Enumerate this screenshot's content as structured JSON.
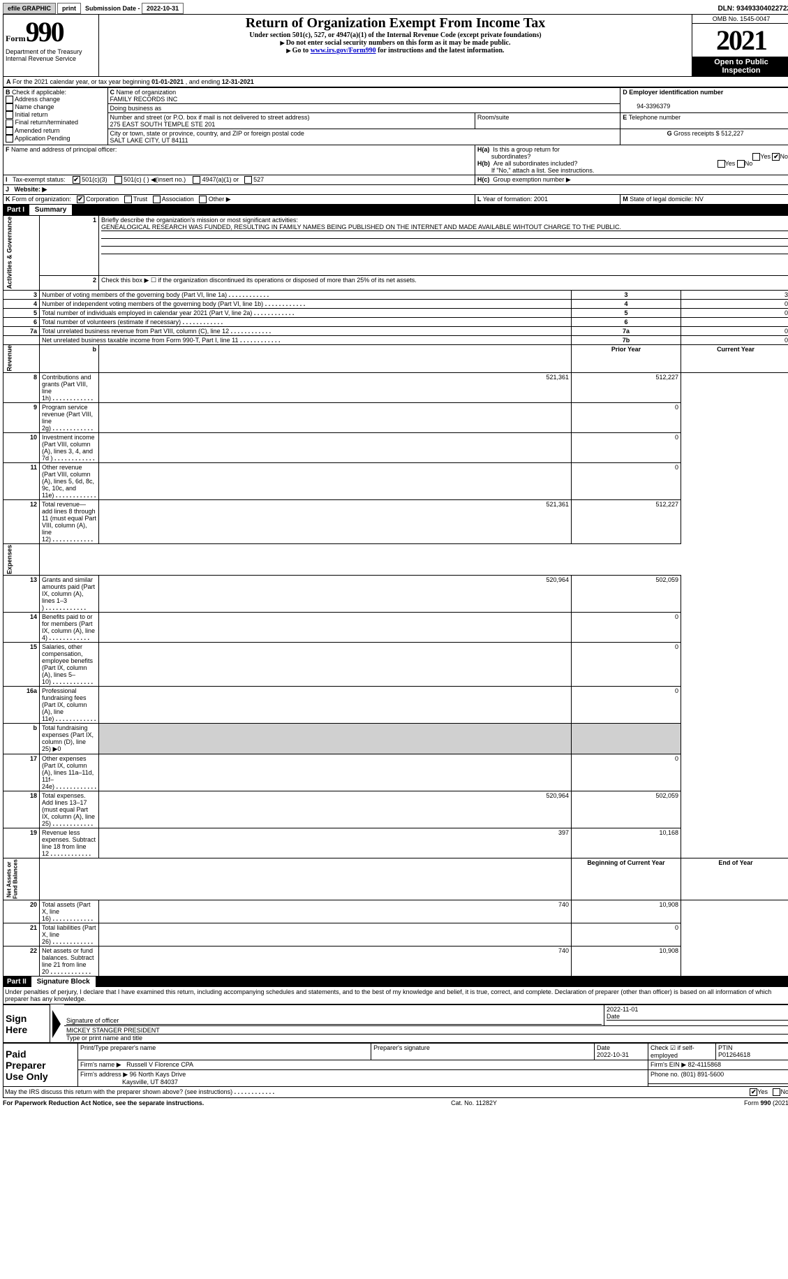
{
  "topbar": {
    "efile": "efile GRAPHIC",
    "print": "print",
    "sub_label": "Submission Date -",
    "sub_date": "2022-10-31",
    "dln": "DLN: 93493304022722"
  },
  "header": {
    "form_word": "Form",
    "form_num": "990",
    "dept": "Department of the Treasury\nInternal Revenue Service",
    "title": "Return of Organization Exempt From Income Tax",
    "sub1": "Under section 501(c), 527, or 4947(a)(1) of the Internal Revenue Code (except private foundations)",
    "sub2": "Do not enter social security numbers on this form as it may be made public.",
    "sub3_a": "Go to ",
    "sub3_link": "www.irs.gov/Form990",
    "sub3_b": " for instructions and the latest information.",
    "omb": "OMB No. 1545-0047",
    "year": "2021",
    "inspect": "Open to Public\nInspection"
  },
  "A": {
    "line": "For the 2021 calendar year, or tax year beginning ",
    "beg": "01-01-2021",
    "mid": "   , and ending ",
    "end": "12-31-2021"
  },
  "B": {
    "label": "Check if applicable:",
    "items": [
      "Address change",
      "Name change",
      "Initial return",
      "Final return/terminated",
      "Amended return",
      "Application Pending"
    ]
  },
  "C": {
    "name_label": "Name of organization",
    "name": "FAMILY RECORDS INC",
    "dba_label": "Doing business as",
    "addr_label": "Number and street (or P.O. box if mail is not delivered to street address)",
    "room_label": "Room/suite",
    "addr": "275 EAST SOUTH TEMPLE STE 201",
    "city_label": "City or town, state or province, country, and ZIP or foreign postal code",
    "city": "SALT LAKE CITY, UT  84111"
  },
  "D": {
    "label": "Employer identification number",
    "val": "94-3396379"
  },
  "E": {
    "label": "Telephone number",
    "val": ""
  },
  "G": {
    "label": "Gross receipts $",
    "val": "512,227"
  },
  "F": {
    "label": "Name and address of principal officer:"
  },
  "H": {
    "a": "Is this a group return for",
    "a2": "subordinates?",
    "b": "Are all subordinates included?",
    "c": "If \"No,\" attach a list. See instructions.",
    "hc": "Group exemption number ▶",
    "yes": "Yes",
    "no": "No"
  },
  "I": {
    "label": "Tax-exempt status:",
    "o1": "501(c)(3)",
    "o2": "501(c) (  ) ◀(insert no.)",
    "o3": "4947(a)(1) or",
    "o4": "527"
  },
  "J": {
    "label": "Website: ▶"
  },
  "K": {
    "label": "Form of organization:",
    "corp": "Corporation",
    "trust": "Trust",
    "assoc": "Association",
    "other": "Other ▶"
  },
  "L": {
    "label": "Year of formation:",
    "val": "2001"
  },
  "M": {
    "label": "State of legal domicile:",
    "val": "NV"
  },
  "part1": {
    "hdr": "Part I",
    "title": "Summary",
    "q1": "Briefly describe the organization's mission or most significant activities:",
    "mission": "GENEALOGICAL RESEARCH WAS FUNDED, RESULTING IN FAMILY NAMES BEING PUBLISHED ON THE INTERNET AND MADE AVAILABLE WIHTOUT CHARGE TO THE PUBLIC.",
    "q2": "Check this box ▶ ☐ if the organization discontinued its operations or disposed of more than 25% of its net assets.",
    "rows": [
      {
        "n": "3",
        "t": "Number of voting members of the governing body (Part VI, line 1a)",
        "box": "3",
        "v": "3"
      },
      {
        "n": "4",
        "t": "Number of independent voting members of the governing body (Part VI, line 1b)",
        "box": "4",
        "v": "0"
      },
      {
        "n": "5",
        "t": "Total number of individuals employed in calendar year 2021 (Part V, line 2a)",
        "box": "5",
        "v": "0"
      },
      {
        "n": "6",
        "t": "Total number of volunteers (estimate if necessary)",
        "box": "6",
        "v": ""
      },
      {
        "n": "7a",
        "t": "Total unrelated business revenue from Part VIII, column (C), line 12",
        "box": "7a",
        "v": "0"
      },
      {
        "n": "",
        "t": "Net unrelated business taxable income from Form 990-T, Part I, line 11",
        "box": "7b",
        "v": "0"
      }
    ],
    "prior": "Prior Year",
    "current": "Current Year",
    "rev": [
      {
        "n": "8",
        "t": "Contributions and grants (Part VIII, line 1h)",
        "p": "521,361",
        "c": "512,227"
      },
      {
        "n": "9",
        "t": "Program service revenue (Part VIII, line 2g)",
        "p": "",
        "c": "0"
      },
      {
        "n": "10",
        "t": "Investment income (Part VIII, column (A), lines 3, 4, and 7d )",
        "p": "",
        "c": "0"
      },
      {
        "n": "11",
        "t": "Other revenue (Part VIII, column (A), lines 5, 6d, 8c, 9c, 10c, and 11e)",
        "p": "",
        "c": "0"
      },
      {
        "n": "12",
        "t": "Total revenue—add lines 8 through 11 (must equal Part VIII, column (A), line 12)",
        "p": "521,361",
        "c": "512,227"
      }
    ],
    "exp": [
      {
        "n": "13",
        "t": "Grants and similar amounts paid (Part IX, column (A), lines 1–3 )",
        "p": "520,964",
        "c": "502,059"
      },
      {
        "n": "14",
        "t": "Benefits paid to or for members (Part IX, column (A), line 4)",
        "p": "",
        "c": "0"
      },
      {
        "n": "15",
        "t": "Salaries, other compensation, employee benefits (Part IX, column (A), lines 5–10)",
        "p": "",
        "c": "0"
      },
      {
        "n": "16a",
        "t": "Professional fundraising fees (Part IX, column (A), line 11e)",
        "p": "",
        "c": "0"
      },
      {
        "n": "b",
        "t": "Total fundraising expenses (Part IX, column (D), line 25) ▶0",
        "p": "gray",
        "c": "gray"
      },
      {
        "n": "17",
        "t": "Other expenses (Part IX, column (A), lines 11a–11d, 11f–24e)",
        "p": "",
        "c": "0"
      },
      {
        "n": "18",
        "t": "Total expenses. Add lines 13–17 (must equal Part IX, column (A), line 25)",
        "p": "520,964",
        "c": "502,059"
      },
      {
        "n": "19",
        "t": "Revenue less expenses. Subtract line 18 from line 12",
        "p": "397",
        "c": "10,168"
      }
    ],
    "boy": "Beginning of Current Year",
    "eoy": "End of Year",
    "net": [
      {
        "n": "20",
        "t": "Total assets (Part X, line 16)",
        "p": "740",
        "c": "10,908"
      },
      {
        "n": "21",
        "t": "Total liabilities (Part X, line 26)",
        "p": "",
        "c": "0"
      },
      {
        "n": "22",
        "t": "Net assets or fund balances. Subtract line 21 from line 20",
        "p": "740",
        "c": "10,908"
      }
    ],
    "sidetabs": {
      "ag": "Activities & Governance",
      "rev": "Revenue",
      "exp": "Expenses",
      "net": "Net Assets or\nFund Balances"
    }
  },
  "part2": {
    "hdr": "Part II",
    "title": "Signature Block",
    "decl": "Under penalties of perjury, I declare that I have examined this return, including accompanying schedules and statements, and to the best of my knowledge and belief, it is true, correct, and complete. Declaration of preparer (other than officer) is based on all information of which preparer has any knowledge."
  },
  "sign": {
    "here": "Sign\nHere",
    "sig_label": "Signature of officer",
    "date_label": "Date",
    "date": "2022-11-01",
    "name": "MICKEY STANGER  PRESIDENT",
    "name_label": "Type or print name and title"
  },
  "paid": {
    "title": "Paid\nPreparer\nUse Only",
    "pname_label": "Print/Type preparer's name",
    "psig_label": "Preparer's signature",
    "pdate_label": "Date",
    "pdate": "2022-10-31",
    "check_label": "Check ☑ if self-employed",
    "ptin_label": "PTIN",
    "ptin": "P01264618",
    "firm_label": "Firm's name    ▶",
    "firm": "Russell V Florence CPA",
    "ein_label": "Firm's EIN ▶",
    "ein": "82-4115868",
    "addr_label": "Firm's address ▶",
    "addr": "96 North Kays Drive",
    "addr2": "Kaysville, UT  84037",
    "phone_label": "Phone no.",
    "phone": "(801) 891-5600"
  },
  "footer": {
    "discuss": "May the IRS discuss this return with the preparer shown above? (see instructions)",
    "yes": "Yes",
    "no": "No",
    "pra": "For Paperwork Reduction Act Notice, see the separate instructions.",
    "cat": "Cat. No. 11282Y",
    "form": "Form 990 (2021)"
  }
}
